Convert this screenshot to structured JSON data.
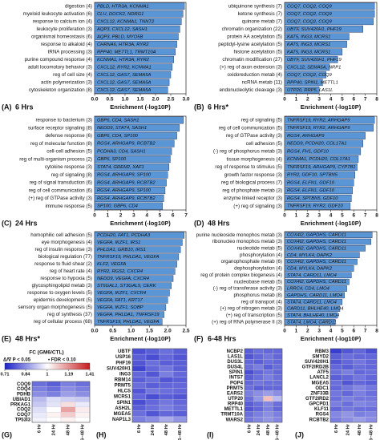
{
  "chart_data": [
    {
      "type": "bar",
      "panel": "(A)",
      "title": "6 Hrs",
      "x_label": "Enrichment (-log10P)",
      "color": "#5a95d5",
      "categories": [
        "digestion (4)",
        "myeloid leukocyte activation (6)",
        "response to calcium ion (4)",
        "leukocyte proliferation (3)",
        "organismal homeostasis (6)",
        "response to alkaloid (4)",
        "tRNA processing (3)",
        "purine compound response (4)",
        "adult locomotory behavior (3)",
        "reg of cell size (4)",
        "actin polymerization (3)",
        "cytoskeleton organization (8)"
      ],
      "bar_labels": [
        "PBLD, HTR3A, KCNMA1",
        "CLU, DOCK2, NDRG1",
        "CXCL12, KCNMA1, TNNT2",
        "AQP3, CXCL12, SASH1",
        "AQP3, PBLD, MYO5B",
        "CHRNA6, HTR3A, RYR2",
        "RPP40, METTL1, TRMT10A",
        "KCNMA1, HTR3A, RYR2",
        "CXCL12, RYR2, KCNMA1",
        "CXCL12, GAS7, SEMA5A",
        "CXCL12, GAS7, SEMA5A",
        "CXCL12, GAS7, SEMA5A"
      ],
      "values": [
        2.95,
        2.9,
        2.85,
        2.8,
        2.75,
        2.7,
        2.65,
        2.6,
        2.55,
        2.5,
        2.45,
        2.4
      ],
      "xlim": [
        0,
        3
      ],
      "xticks": [
        {
          "value": 0,
          "label": "0.0"
        },
        0.5,
        {
          "value": 1,
          "label": "1.0"
        },
        1.5,
        {
          "value": 2,
          "label": "2.0"
        },
        2.5,
        {
          "value": 3,
          "label": "3.0"
        }
      ]
    },
    {
      "type": "bar",
      "panel": "(B)",
      "title": "6 Hrs*",
      "x_label": "Enrichment (-log10P)",
      "color": "#5a95d5",
      "categories": [
        "ubiquinone synthesis (7)",
        "ketone synthesis (7)",
        "quinone metab (7)",
        "chromatin organization (22)",
        "protein AA acetylation (5)",
        "peptidyl-lysine acetylation (5)",
        "histone acetylation (5)",
        "chromatin modification (27)",
        "(+) reg of axon extension (3)",
        "oxidoreduction metab (4)",
        "ncRNA metab (11)",
        "endonucleolytic cleavage (3)"
      ],
      "bar_labels": [
        "COQ7, COQ2, COQ9",
        "COQ7, COQ2, COQ9",
        "COQ7, COQ2, COQ9",
        "UBTF, SUV420H1, PHF19",
        "KAT5, ING3, MCRS1",
        "KAT5, ING3, MCRS1",
        "KAT5, ING3, MCRS1",
        "UBTF, SUV420H1, PHF19",
        "CXCL12, SEMA5A, NRP1",
        "COQ7, COQ2, COQ9",
        "RPP40, SPIN1, METTL1",
        "UTP20, RRP5, LAS1L"
      ],
      "values": [
        7.8,
        7.8,
        7.7,
        6.8,
        5.6,
        5.4,
        5.0,
        4.6,
        3.9,
        3.6,
        3.3,
        3.0
      ],
      "xlim": [
        0,
        8
      ],
      "xticks": [
        0,
        1,
        2,
        3,
        4,
        5,
        6,
        7,
        8
      ]
    },
    {
      "type": "bar",
      "panel": "(C)",
      "title": "24 Hrs",
      "x_label": "Enrichment (-log10P)",
      "color": "#5a95d5",
      "categories": [
        "response to bacterium (3)",
        "surface receptor signaling (8)",
        "defense response (6)",
        "reg of molecular function (8)",
        "cell-cell adhesion (5)",
        "reg of multi-organism process (2)",
        "cytokine response (3)",
        "reg of signaling (8)",
        "reg of signal transduction (6)",
        "reg of cell communication (6)",
        "(+) reg of GTPase activity (3)",
        "immune response (5)"
      ],
      "bar_labels": [
        "GBP6, CD4, SASH1",
        "NEDD9, STAT4, SASH1",
        "GBP6, CD4, SP100",
        "RGS4, ARHGAP9, RCBTB2",
        "PCDHA3, CD4, SASH1",
        "GBP6, SP100",
        "STAT4, GREM2, XAF1",
        "RGS4, ARHGAP9, SP100",
        "RGS4, ARHGAP9, RCBTB2",
        "RGS4, ARHGAP9, SP100",
        "RGS4, ARHGAP9, RCBTB2",
        "SP100, GBP6, CD4"
      ],
      "values": [
        6.8,
        6.5,
        6.3,
        6.1,
        5.9,
        5.8,
        5.7,
        5.6,
        5.5,
        5.4,
        5.3,
        5.2
      ],
      "xlim": [
        0,
        7
      ],
      "xticks": [
        0,
        1,
        2,
        3,
        4,
        5,
        6,
        7
      ]
    },
    {
      "type": "bar",
      "panel": "(D)",
      "title": "48 Hrs",
      "x_label": "Enrichment (-log10P)",
      "color": "#5a95d5",
      "categories": [
        "reg of signaling (5)",
        "reg of cell communication (5)",
        "reg of GTPase activity (3)",
        "cell adhesion (5)",
        "(-) reg of phosphorus metab (3)",
        "tissue morphogenesis (4)",
        "reg of response to stimulus (5)",
        "growth factor response (3)",
        "reg of biological process (7)",
        "reg of phosphate metab (3)",
        "enzyme linked receptor (3)",
        "(+) reg of signaling (3)"
      ],
      "bar_labels": [
        "TNFRSF19, RYR2, ARHGAP9",
        "TNFRSF19, RYR2, ARHGAP9",
        "RGS4, ARHGAP9",
        "NEDD9, PCDH20, COL17A1",
        "RGS4, FH1, GDF10",
        "KCNMA1, PCDH20, COL17A1",
        "TNFRSF19, ARHGAP9, CYP7B1",
        "RYR2, GDF10, SPTBN5",
        "RGS4, ELFN1, GDF10",
        "RGS4, ELFN1, GDF10",
        "RGS4, SPTBN5, GDF10",
        "TNFRSF19, RYR2, GDF10"
      ],
      "values": [
        7.8,
        7.7,
        7.0,
        6.8,
        6.6,
        6.4,
        6.3,
        6.1,
        6.0,
        5.9,
        5.8,
        5.7
      ],
      "xlim": [
        0,
        8
      ],
      "xticks": [
        0,
        1,
        2,
        3,
        4,
        5,
        6,
        7,
        8
      ]
    },
    {
      "type": "bar",
      "panel": "(E)",
      "title": "48 Hrs*",
      "x_label": "Enrichment (-log10P)",
      "color": "#5a95d5",
      "categories": [
        "homophilic cell adhesion (5)",
        "eye morphogenesis (4)",
        "reg of insulin response (3)",
        "biological regulation (77)",
        "response to fluid shear (2)",
        "reg of heart rate (4)",
        "response to hypoxia (5)",
        "glycosphingolipid metab (3)",
        "response to oxygen levels (5)",
        "epidermis development (5)",
        "sensory organ morphogenesis (5)",
        "reg of synthesis (37)",
        "reg of cellular process (68)"
      ],
      "bar_labels": [
        "PCDH20, FAT1, PCDHA3",
        "VEGFA, IKZF1, IRS1",
        "PHLDA1, GRB10, IRS1",
        "TNFRSF19, PHLDA1, VEGFA",
        "KLF2, VEGFA",
        "RYR2, RGS2, CXCR4",
        "NEDD9, VEGFA, CXCR4",
        "ST6GAL1, ST3GAL5, CERK",
        "VEGFA, IKZF1, CXCR4",
        "VEGFA, FAT1, KRT17",
        "VEGFA, IKZF1, SOBP",
        "VEGFA, PHLDA1, TNFRSF19",
        "TNFRSF19, PHLDA1, VEGFA"
      ],
      "values": [
        2.45,
        2.4,
        2.35,
        2.3,
        2.25,
        2.2,
        2.15,
        2.1,
        2.05,
        2.0,
        1.95,
        1.9,
        1.85
      ],
      "xlim": [
        0,
        2.5
      ],
      "xticks": [
        {
          "value": 0,
          "label": "0.0"
        },
        0.5,
        {
          "value": 1,
          "label": "1.0"
        },
        1.5,
        {
          "value": 2,
          "label": "2.0"
        },
        2.5
      ]
    },
    {
      "type": "bar",
      "panel": "(F)",
      "title": "6-48 Hrs",
      "x_label": "Enrichment (-log10P)",
      "color": "#5a95d5",
      "categories": [
        "purine nucleoside monophos metab (3)",
        "ribonucleo monophos metab (3)",
        "nucleotide metab (5)",
        "phosphorylation (4)",
        "organophosphate metab (6)",
        "dephosphorylation (4)",
        "reg of protein complex biogenesis (4)",
        "nucleobase metab (5)",
        "(-) reg of transferase activity (3)",
        "phosphorus metab (8)",
        "reg of transport (4)",
        "(+) reg of nitrogen metab (3)",
        "(+) reg of transcription (5)",
        "(+) reg of RNA polymerase II (3)"
      ],
      "bar_labels": [
        "COX4I2, GAPDHS, CARD11",
        "COX4I2, GAPDHS, CARD11",
        "COX4I2, GAPDHS, CARD11",
        "CD4, MYLK4, DAPK2",
        "COX4I2, GAPDHS, CARD11",
        "CD4, MYLK4, DAPK2",
        "STAT4, CARD11, LMO4",
        "COX4I2, GAPDHS, CARD11",
        "LRRC4, CD4, LMO4",
        "GAPDHS, CARD11, LMO4",
        "STAT4, CARD11, LMO4",
        "CARD11, BHLHE40, LMO4",
        "STAT4, BHLHE40, LMO4",
        "STAT4, LMO4, CARD11"
      ],
      "values": [
        7.6,
        7.5,
        7.0,
        6.5,
        6.3,
        6.0,
        5.8,
        5.6,
        5.4,
        5.2,
        5.0,
        4.8,
        4.6,
        4.4
      ],
      "xlim": [
        0,
        8
      ],
      "xticks": [
        0,
        1,
        2,
        3,
        4,
        5,
        6,
        7,
        8
      ]
    },
    {
      "type": "heatmap",
      "panel": "(G)",
      "colorbar_title": "FC (GM6/CTL)",
      "colorbar_notes": [
        "Δ/∇ P < 0.05",
        "• FDR < 0.10"
      ],
      "clim": [
        0.71,
        1.41
      ],
      "colorbar_ticks": [
        0.71,
        0.84,
        1,
        1.19,
        1.41
      ],
      "colormap": [
        "#1c22c8",
        "#ffffff",
        "#c81c1c"
      ],
      "rows": [
        "COQ9",
        "COQ4",
        "PDHB",
        "UBIAD1",
        "PRKAG1",
        "COQ2",
        "COQ7",
        "TP53I3"
      ],
      "columns": [
        "6 Hr",
        "24 Hr",
        "48 Hr",
        "6–48 Hr"
      ],
      "values": [
        [
          0.8,
          0.78,
          0.82,
          0.8
        ],
        [
          0.82,
          0.8,
          0.84,
          0.82
        ],
        [
          0.84,
          0.82,
          0.86,
          0.84
        ],
        [
          0.9,
          0.95,
          0.93,
          0.92
        ],
        [
          0.92,
          0.96,
          1.05,
          0.97
        ],
        [
          0.95,
          1.0,
          1.15,
          1.03
        ],
        [
          0.97,
          1.02,
          1.08,
          1.02
        ],
        [
          0.98,
          1.0,
          1.02,
          1.0
        ]
      ]
    },
    {
      "type": "heatmap",
      "panel": "(H)",
      "rows": [
        "UBTF",
        "USP16",
        "PHF19",
        "SUV420H1",
        "ING3",
        "RBM14",
        "PRMT5",
        "HLCS",
        "MCRS1",
        "SPIN1",
        "ASH2L",
        "MGEA5",
        "NAP1L3"
      ],
      "columns": [
        "6 Hr",
        "24 Hr",
        "48 Hr",
        "6–48 Hr"
      ],
      "values": [
        [
          0.76,
          0.78,
          0.8,
          0.78
        ],
        [
          0.78,
          0.76,
          0.79,
          0.77
        ],
        [
          0.77,
          0.8,
          0.78,
          0.78
        ],
        [
          0.75,
          0.79,
          0.81,
          0.78
        ],
        [
          0.79,
          0.77,
          0.82,
          0.79
        ],
        [
          0.78,
          0.8,
          0.77,
          0.78
        ],
        [
          0.8,
          0.78,
          0.79,
          0.79
        ],
        [
          0.77,
          0.81,
          0.8,
          0.79
        ],
        [
          0.79,
          0.76,
          0.78,
          0.77
        ],
        [
          0.76,
          0.79,
          0.81,
          0.79
        ],
        [
          0.78,
          0.8,
          0.82,
          0.8
        ],
        [
          0.8,
          0.77,
          0.79,
          0.78
        ],
        [
          0.82,
          0.84,
          0.88,
          0.85
        ]
      ]
    },
    {
      "type": "heatmap",
      "panel": "(I)",
      "rows": [
        "NCBP2",
        "LAS1L",
        "DUS3L",
        "DUS4L",
        "SPIN1",
        "INTS7",
        "POP4",
        "PRMT5",
        "EARS2",
        "UTP20",
        "RPP40",
        "METTL1",
        "TRMT10A",
        "WARS2"
      ],
      "columns": [
        "6 Hr",
        "24 Hr",
        "48 Hr",
        "6–48 Hr"
      ],
      "values": [
        [
          0.78,
          0.8,
          0.79,
          0.79
        ],
        [
          0.77,
          0.79,
          0.81,
          0.79
        ],
        [
          0.79,
          0.78,
          0.8,
          0.79
        ],
        [
          0.8,
          0.82,
          0.78,
          0.8
        ],
        [
          0.76,
          0.79,
          0.81,
          0.79
        ],
        [
          0.78,
          0.8,
          0.82,
          0.8
        ],
        [
          0.79,
          0.81,
          0.8,
          0.8
        ],
        [
          0.8,
          0.78,
          0.79,
          0.79
        ],
        [
          0.82,
          0.84,
          0.86,
          0.84
        ],
        [
          0.8,
          0.85,
          1.1,
          0.9
        ],
        [
          0.78,
          0.8,
          0.83,
          0.8
        ],
        [
          0.77,
          0.79,
          0.82,
          0.79
        ],
        [
          0.8,
          0.82,
          0.84,
          0.82
        ],
        [
          0.81,
          0.83,
          0.85,
          0.83
        ]
      ]
    },
    {
      "type": "heatmap",
      "panel": "(J)",
      "rows": [
        "RBM3",
        "SMYD2",
        "SUV420H1",
        "GTF2IRD2B",
        "ATF5",
        "LANCL2",
        "MGEA5",
        "ODC1",
        "ZNF33B",
        "GTF2IRD2",
        "GPCPD1",
        "KLF11",
        "RGS4",
        "RCBTB2"
      ],
      "columns": [
        "6 Hr",
        "24 Hr",
        "48 Hr",
        "6–48 Hr"
      ],
      "values": [
        [
          0.74,
          0.77,
          0.79,
          0.76
        ],
        [
          0.78,
          0.8,
          0.79,
          0.79
        ],
        [
          0.77,
          0.79,
          0.81,
          0.79
        ],
        [
          0.79,
          0.78,
          0.8,
          0.79
        ],
        [
          0.8,
          0.82,
          0.79,
          0.8
        ],
        [
          0.78,
          0.79,
          0.81,
          0.79
        ],
        [
          0.8,
          0.77,
          0.79,
          0.78
        ],
        [
          0.79,
          0.81,
          0.83,
          0.81
        ],
        [
          0.81,
          0.79,
          0.82,
          0.8
        ],
        [
          0.8,
          0.82,
          0.81,
          0.81
        ],
        [
          0.82,
          0.8,
          0.83,
          0.82
        ],
        [
          0.79,
          0.81,
          0.8,
          0.8
        ],
        [
          0.83,
          0.85,
          0.82,
          0.83
        ],
        [
          0.82,
          0.84,
          0.86,
          0.84
        ]
      ]
    }
  ]
}
